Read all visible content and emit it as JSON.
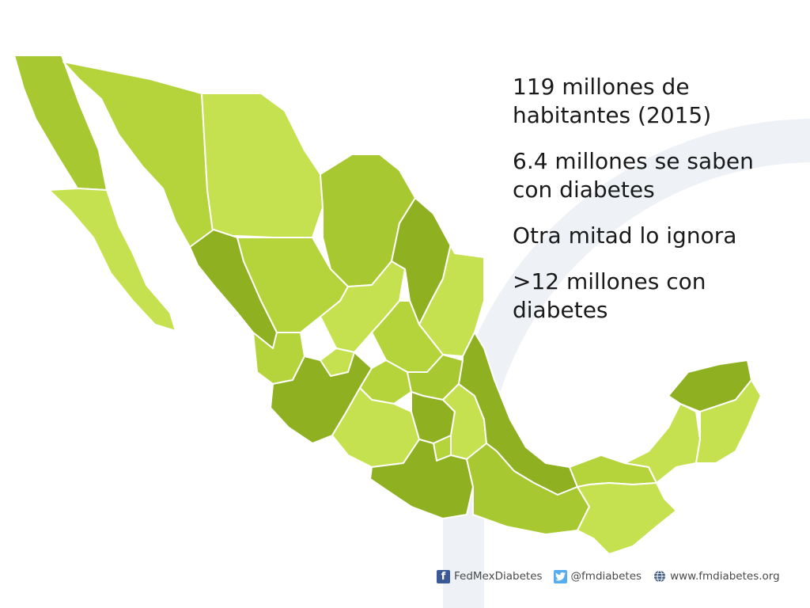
{
  "stats": [
    "119 millones de\nhabitantes (2015)",
    "6.4 millones se saben\ncon diabetes",
    "Otra mitad lo ignora",
    ">12 millones con\ndiabetes"
  ],
  "footer": {
    "facebook": "FedMexDiabetes",
    "twitter": "@fmdiabetes",
    "website": "www.fmdiabetes.org"
  },
  "colors": {
    "light": "#c6e14f",
    "mid": "#a8c831",
    "dark": "#8fb021",
    "background_arc": "#eef2f6",
    "text": "#1a1a1a"
  },
  "icons": [
    "facebook-icon",
    "twitter-icon",
    "globe-icon"
  ]
}
